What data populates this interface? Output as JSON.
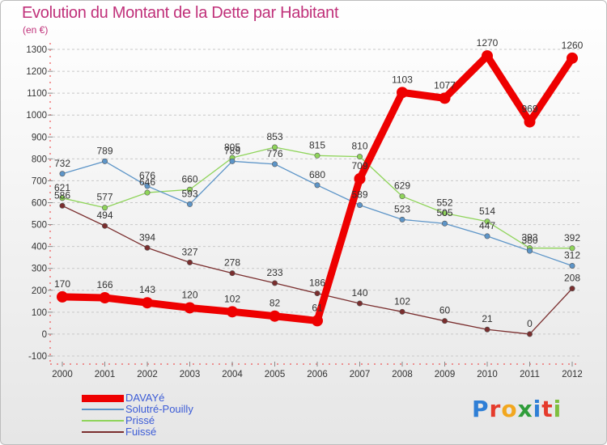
{
  "header": {
    "title": "Evolution du Montant de la Dette par Habitant",
    "subtitle": "(en €)"
  },
  "brand": {
    "name": "Proxiti",
    "letters": [
      "P",
      "r",
      "o",
      "x",
      "i",
      "t",
      "i"
    ],
    "letter_colors": [
      "#2f7fd6",
      "#e53b2c",
      "#f2a71e",
      "#2f9d3a",
      "#2f7fd6",
      "#e53b2c",
      "#7fbf3f"
    ]
  },
  "chart_data": {
    "type": "line",
    "title": "Evolution du Montant de la Dette par Habitant",
    "subtitle": "(en €)",
    "xlabel": "",
    "ylabel": "",
    "categories": [
      "2000",
      "2001",
      "2002",
      "2003",
      "2004",
      "2005",
      "2006",
      "2007",
      "2008",
      "2009",
      "2010",
      "2011",
      "2012"
    ],
    "ylim": [
      -100,
      1300
    ],
    "yticks": [
      -100,
      0,
      100,
      200,
      300,
      400,
      500,
      600,
      700,
      800,
      900,
      1000,
      1100,
      1200,
      1300
    ],
    "grid": "horizontal dashed",
    "legend_position": "bottom-left",
    "series": [
      {
        "name": "DAVAYé",
        "color": "#ee0000",
        "width": 9,
        "values": [
          170,
          166,
          143,
          120,
          102,
          82,
          61,
          709,
          1103,
          1077,
          1270,
          969,
          1260
        ],
        "labels": [
          "170",
          "166",
          "143",
          "120",
          "102",
          "82",
          "61",
          "709",
          "1103",
          "1077",
          "1270",
          "969",
          "1260"
        ]
      },
      {
        "name": "Solutré-Pouilly",
        "color": "#5d95c8",
        "width": 1.3,
        "values": [
          732,
          789,
          676,
          593,
          789,
          776,
          680,
          589,
          523,
          505,
          447,
          380,
          312
        ],
        "labels": [
          "732",
          "789",
          "676",
          "593",
          "789",
          "776",
          "680",
          "589",
          "523",
          "505",
          "447",
          "380",
          "312"
        ]
      },
      {
        "name": "Prissé",
        "color": "#8fd45a",
        "width": 1.3,
        "values": [
          621,
          577,
          646,
          660,
          805,
          853,
          815,
          810,
          629,
          552,
          514,
          393,
          392
        ],
        "labels": [
          "621",
          "577",
          "646",
          "660",
          "805",
          "853",
          "815",
          "810",
          "629",
          "552",
          "514",
          "393",
          "392"
        ]
      },
      {
        "name": "Fuissé",
        "color": "#7a2e2e",
        "width": 1.3,
        "values": [
          586,
          494,
          394,
          327,
          278,
          233,
          186,
          140,
          102,
          60,
          21,
          0,
          208
        ],
        "labels": [
          "586",
          "494",
          "394",
          "327",
          "278",
          "233",
          "186",
          "140",
          "102",
          "60",
          "21",
          "0",
          "208"
        ]
      }
    ]
  }
}
